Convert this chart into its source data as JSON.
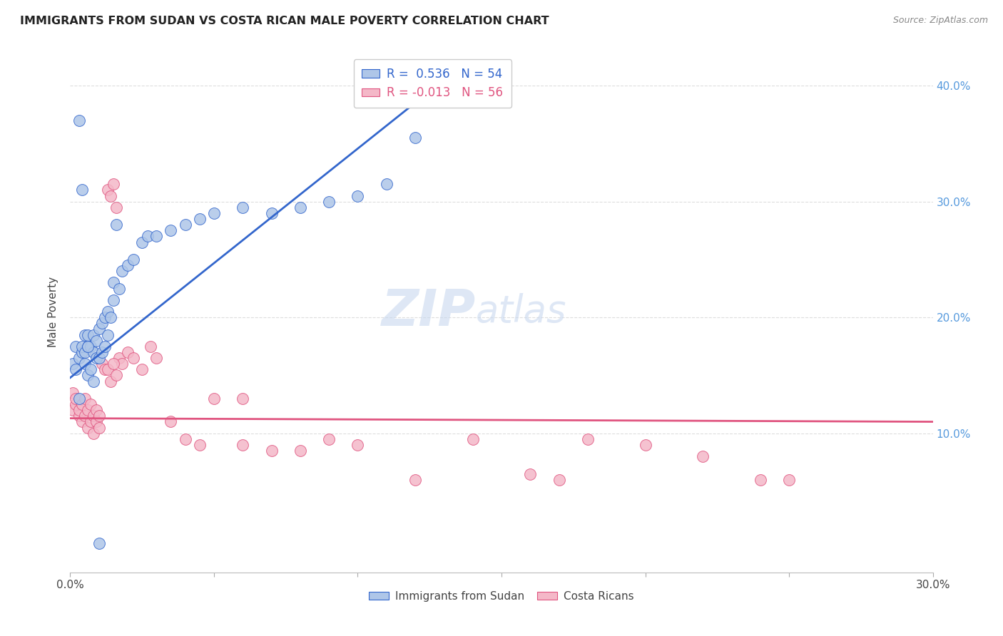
{
  "title": "IMMIGRANTS FROM SUDAN VS COSTA RICAN MALE POVERTY CORRELATION CHART",
  "source": "Source: ZipAtlas.com",
  "ylabel": "Male Poverty",
  "xlim": [
    0.0,
    0.3
  ],
  "ylim": [
    -0.02,
    0.43
  ],
  "color_blue": "#aec6e8",
  "color_pink": "#f4b8c8",
  "trendline_blue": "#3366cc",
  "trendline_pink": "#e05580",
  "watermark_zip": "ZIP",
  "watermark_atlas": "atlas",
  "sudan_x": [
    0.001,
    0.002,
    0.002,
    0.003,
    0.003,
    0.004,
    0.004,
    0.005,
    0.005,
    0.005,
    0.006,
    0.006,
    0.006,
    0.007,
    0.007,
    0.008,
    0.008,
    0.009,
    0.009,
    0.01,
    0.01,
    0.011,
    0.011,
    0.012,
    0.012,
    0.013,
    0.013,
    0.014,
    0.015,
    0.015,
    0.016,
    0.017,
    0.018,
    0.02,
    0.022,
    0.025,
    0.027,
    0.03,
    0.035,
    0.04,
    0.045,
    0.05,
    0.06,
    0.07,
    0.08,
    0.09,
    0.1,
    0.11,
    0.12,
    0.003,
    0.004,
    0.006,
    0.008,
    0.01
  ],
  "sudan_y": [
    0.16,
    0.155,
    0.175,
    0.13,
    0.165,
    0.17,
    0.175,
    0.16,
    0.17,
    0.185,
    0.15,
    0.175,
    0.185,
    0.155,
    0.175,
    0.17,
    0.185,
    0.165,
    0.18,
    0.165,
    0.19,
    0.17,
    0.195,
    0.175,
    0.2,
    0.185,
    0.205,
    0.2,
    0.215,
    0.23,
    0.28,
    0.225,
    0.24,
    0.245,
    0.25,
    0.265,
    0.27,
    0.27,
    0.275,
    0.28,
    0.285,
    0.29,
    0.295,
    0.29,
    0.295,
    0.3,
    0.305,
    0.315,
    0.355,
    0.37,
    0.31,
    0.175,
    0.145,
    0.005
  ],
  "costarica_x": [
    0.001,
    0.001,
    0.002,
    0.002,
    0.003,
    0.003,
    0.004,
    0.004,
    0.005,
    0.005,
    0.006,
    0.006,
    0.007,
    0.007,
    0.008,
    0.008,
    0.009,
    0.009,
    0.01,
    0.01,
    0.011,
    0.012,
    0.013,
    0.014,
    0.015,
    0.016,
    0.017,
    0.018,
    0.02,
    0.022,
    0.025,
    0.028,
    0.03,
    0.035,
    0.04,
    0.045,
    0.05,
    0.06,
    0.07,
    0.08,
    0.1,
    0.12,
    0.14,
    0.16,
    0.18,
    0.2,
    0.22,
    0.24,
    0.013,
    0.014,
    0.015,
    0.016,
    0.06,
    0.09,
    0.17,
    0.25
  ],
  "costarica_y": [
    0.12,
    0.135,
    0.125,
    0.13,
    0.115,
    0.12,
    0.11,
    0.125,
    0.13,
    0.115,
    0.12,
    0.105,
    0.11,
    0.125,
    0.1,
    0.115,
    0.11,
    0.12,
    0.105,
    0.115,
    0.16,
    0.155,
    0.31,
    0.305,
    0.315,
    0.295,
    0.165,
    0.16,
    0.17,
    0.165,
    0.155,
    0.175,
    0.165,
    0.11,
    0.095,
    0.09,
    0.13,
    0.09,
    0.085,
    0.085,
    0.09,
    0.06,
    0.095,
    0.065,
    0.095,
    0.09,
    0.08,
    0.06,
    0.155,
    0.145,
    0.16,
    0.15,
    0.13,
    0.095,
    0.06,
    0.06
  ],
  "trendline_sudan_x0": 0.0,
  "trendline_sudan_x1": 0.13,
  "trendline_sudan_y0": 0.148,
  "trendline_sudan_y1": 0.405,
  "trendline_cr_x0": 0.0,
  "trendline_cr_x1": 0.3,
  "trendline_cr_y0": 0.113,
  "trendline_cr_y1": 0.11
}
